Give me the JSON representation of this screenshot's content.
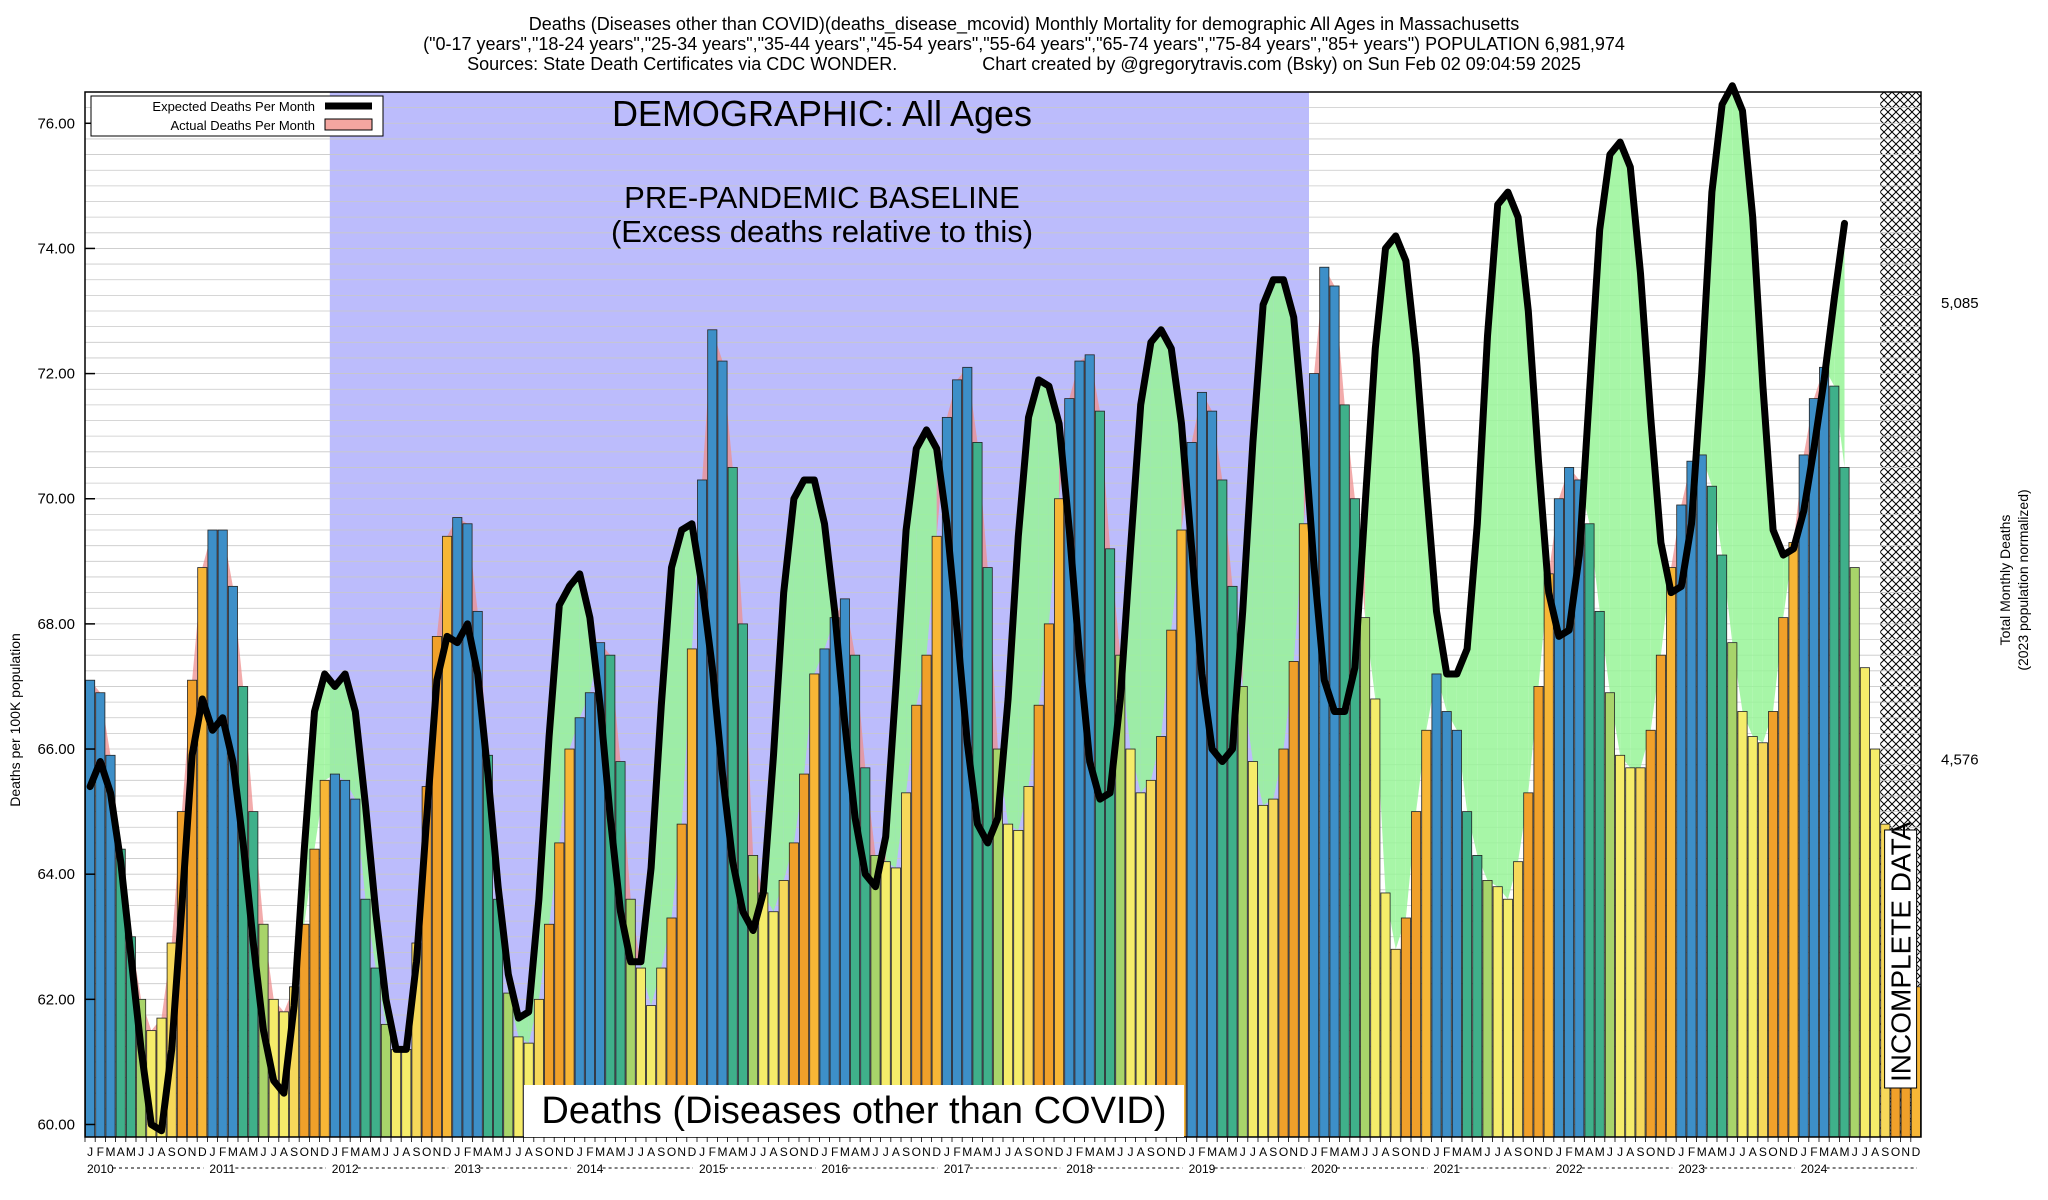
{
  "header": {
    "line1": "Deaths (Diseases other than COVID)(deaths_disease_mcovid) Monthly Mortality for demographic All Ages in Massachusetts",
    "line2": "(\"0-17 years\",\"18-24 years\",\"25-34 years\",\"35-44 years\",\"45-54 years\",\"55-64 years\",\"65-74 years\",\"75-84 years\",\"85+ years\") POPULATION 6,981,974",
    "line3": "Sources: State Death Certificates via CDC WONDER.                 Chart created by @gregorytravis.com (Bsky) on Sun Feb 02 09:04:59 2025"
  },
  "chart_data": {
    "type": "bar",
    "ylabel": "Deaths per 100K population",
    "y2label_line1": "Total Monthly Deaths",
    "y2label_line2": "(2023 population normalized)",
    "ylim": [
      59.8,
      76.5
    ],
    "yticks": [
      60,
      62,
      64,
      66,
      68,
      70,
      72,
      74,
      76
    ],
    "ytick_labels": [
      "60.00",
      "62.00",
      "64.00",
      "66.00",
      "68.00",
      "70.00",
      "72.00",
      "74.00",
      "76.00"
    ],
    "y2_ticks": [
      {
        "y": 65.83,
        "label": "4,576"
      },
      {
        "y": 73.13,
        "label": "5,085"
      }
    ],
    "years": [
      "2010",
      "2011",
      "2012",
      "2013",
      "2014",
      "2015",
      "2016",
      "2017",
      "2018",
      "2019",
      "2020",
      "2021",
      "2022",
      "2023",
      "2024"
    ],
    "month_letters": [
      "J",
      "F",
      "M",
      "A",
      "M",
      "J",
      "J",
      "A",
      "S",
      "O",
      "N",
      "D"
    ],
    "series": [
      {
        "name": "Actual Deaths Per Month",
        "color": "#f4a6a0",
        "values": [
          67.1,
          66.9,
          65.9,
          64.4,
          63.0,
          62.0,
          61.5,
          61.7,
          62.9,
          65.0,
          67.1,
          68.9,
          69.5,
          69.5,
          68.6,
          67.0,
          65.0,
          63.2,
          62.0,
          61.8,
          62.2,
          63.2,
          64.4,
          65.5,
          65.6,
          65.5,
          65.2,
          63.6,
          62.5,
          61.6,
          61.2,
          61.2,
          62.9,
          65.4,
          67.8,
          69.4,
          69.7,
          69.6,
          68.2,
          65.9,
          63.6,
          62.1,
          61.4,
          61.3,
          62.0,
          63.2,
          64.5,
          66.0,
          66.5,
          66.9,
          67.7,
          67.5,
          65.8,
          63.6,
          62.5,
          61.9,
          62.5,
          63.3,
          64.8,
          67.6,
          70.3,
          72.7,
          72.2,
          70.5,
          68.0,
          64.3,
          63.7,
          63.4,
          63.9,
          64.5,
          65.6,
          67.2,
          67.6,
          68.1,
          68.4,
          67.5,
          65.7,
          64.3,
          64.2,
          64.1,
          65.3,
          66.7,
          67.5,
          69.4,
          71.3,
          71.9,
          72.1,
          70.9,
          68.9,
          66.0,
          64.8,
          64.7,
          65.4,
          66.7,
          68.0,
          70.0,
          71.6,
          72.2,
          72.3,
          71.4,
          69.2,
          67.5,
          66.0,
          65.3,
          65.5,
          66.2,
          67.9,
          69.5,
          70.9,
          71.7,
          71.4,
          70.3,
          68.6,
          67.0,
          65.8,
          65.1,
          65.2,
          66.0,
          67.4,
          69.6,
          72.0,
          73.7,
          73.4,
          71.5,
          70.0,
          68.1,
          66.8,
          63.7,
          62.8,
          63.3,
          65.0,
          66.3,
          67.2,
          66.6,
          66.3,
          65.0,
          64.3,
          63.9,
          63.8,
          63.6,
          64.2,
          65.3,
          67.0,
          68.8,
          70.0,
          70.5,
          70.3,
          69.6,
          68.2,
          66.9,
          65.9,
          65.7,
          65.7,
          66.3,
          67.5,
          68.9,
          69.9,
          70.6,
          70.7,
          70.2,
          69.1,
          67.7,
          66.6,
          66.2,
          66.1,
          66.6,
          68.1,
          69.3,
          70.7,
          71.6,
          72.1,
          71.8,
          70.5,
          68.9,
          67.3,
          66.0,
          64.8,
          63.8,
          63.0,
          62.2
        ]
      },
      {
        "name": "Expected Deaths Per Month",
        "color": "#000000",
        "values": [
          65.4,
          65.8,
          65.3,
          64.2,
          62.7,
          61.2,
          60.0,
          59.9,
          61.2,
          63.5,
          65.9,
          66.8,
          66.3,
          66.5,
          65.8,
          64.5,
          62.9,
          61.5,
          60.7,
          60.5,
          61.9,
          64.4,
          66.6,
          67.2,
          67.0,
          67.2,
          66.6,
          65.1,
          63.4,
          62.0,
          61.2,
          61.2,
          62.6,
          64.9,
          67.1,
          67.8,
          67.7,
          68.0,
          67.2,
          65.6,
          63.8,
          62.4,
          61.7,
          61.8,
          63.6,
          66.2,
          68.3,
          68.6,
          68.8,
          68.1,
          66.7,
          64.9,
          63.4,
          62.6,
          62.6,
          64.1,
          66.7,
          68.9,
          69.5,
          69.6,
          68.6,
          67.3,
          65.6,
          64.2,
          63.4,
          63.1,
          63.7,
          65.9,
          68.5,
          70.0,
          70.3,
          70.3,
          69.6,
          68.2,
          66.4,
          64.9,
          64.0,
          63.8,
          64.6,
          67.0,
          69.5,
          70.8,
          71.1,
          70.8,
          69.6,
          67.9,
          66.1,
          64.8,
          64.5,
          64.9,
          66.8,
          69.4,
          71.3,
          71.9,
          71.8,
          71.2,
          69.5,
          67.5,
          65.8,
          65.2,
          65.3,
          66.8,
          69.2,
          71.5,
          72.5,
          72.7,
          72.4,
          71.2,
          69.2,
          67.2,
          66.0,
          65.8,
          66.0,
          68.2,
          70.9,
          73.1,
          73.5,
          73.5,
          72.9,
          71.1,
          68.9,
          67.1,
          66.6,
          66.6,
          67.3,
          69.9,
          72.4,
          74.0,
          74.2,
          73.8,
          72.3,
          70.2,
          68.2,
          67.2,
          67.2,
          67.6,
          69.6,
          72.6,
          74.7,
          74.9,
          74.5,
          73.0,
          70.6,
          68.5,
          67.8,
          67.9,
          69.1,
          71.7,
          74.3,
          75.5,
          75.7,
          75.3,
          73.6,
          71.3,
          69.3,
          68.5,
          68.6,
          69.6,
          72.0,
          74.9,
          76.3,
          76.6,
          76.2,
          74.5,
          71.8,
          69.5,
          69.1,
          69.2,
          69.8,
          70.8,
          71.9,
          73.2,
          74.4
        ]
      }
    ],
    "legend": "top-left",
    "legend_entries": [
      "Expected Deaths Per Month",
      "Actual Deaths Per Month"
    ],
    "baseline_shading_years": [
      "2012",
      "2019"
    ]
  },
  "annotations": {
    "demographic": "DEMOGRAPHIC: All Ages",
    "baseline_line1": "PRE-PANDEMIC BASELINE",
    "baseline_line2": "(Excess deaths relative to this)",
    "bottom_label": "Deaths (Diseases other than COVID)",
    "incomplete": "INCOMPLETE DATA"
  },
  "colors": {
    "baseline_fill": "#bcbcfc",
    "excess_above_fill": "#98f598",
    "excess_below_fill": "#ee8f8f",
    "bar_winter": "#3d8fc8",
    "bar_summer": "#f5ec6a",
    "bar_fall": "#f0a02a",
    "bar_spring": "#3fb08a"
  }
}
